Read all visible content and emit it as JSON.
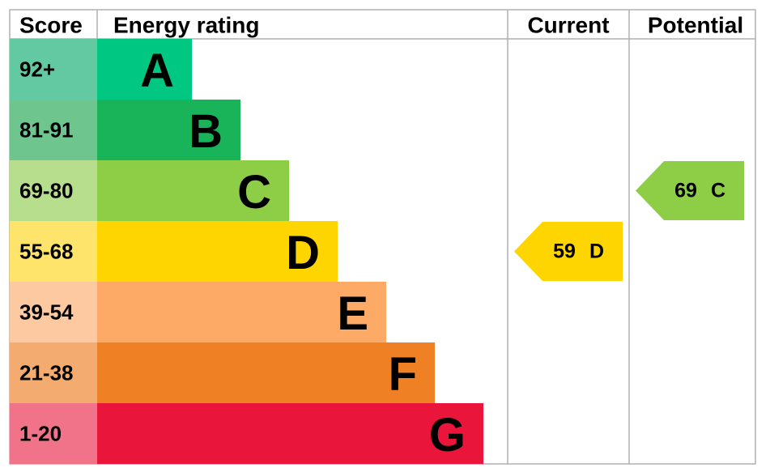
{
  "header": {
    "score": "Score",
    "rating": "Energy rating",
    "current": "Current",
    "potential": "Potential"
  },
  "bands": [
    {
      "score": "92+",
      "letter": "A",
      "color": "#00c781",
      "score_color": "#63c9a2"
    },
    {
      "score": "81-91",
      "letter": "B",
      "color": "#19b459",
      "score_color": "#6ec58d"
    },
    {
      "score": "69-80",
      "letter": "C",
      "color": "#8dce46",
      "score_color": "#b7de8c"
    },
    {
      "score": "55-68",
      "letter": "D",
      "color": "#ffd500",
      "score_color": "#ffe46c"
    },
    {
      "score": "39-54",
      "letter": "E",
      "color": "#fcaa65",
      "score_color": "#fdc9a1"
    },
    {
      "score": "21-38",
      "letter": "F",
      "color": "#ef8023",
      "score_color": "#f4ab70"
    },
    {
      "score": "1-20",
      "letter": "G",
      "color": "#e9153b",
      "score_color": "#f07389"
    }
  ],
  "current": {
    "score": 59,
    "rating": "D"
  },
  "potential": {
    "score": 69,
    "rating": "C"
  }
}
